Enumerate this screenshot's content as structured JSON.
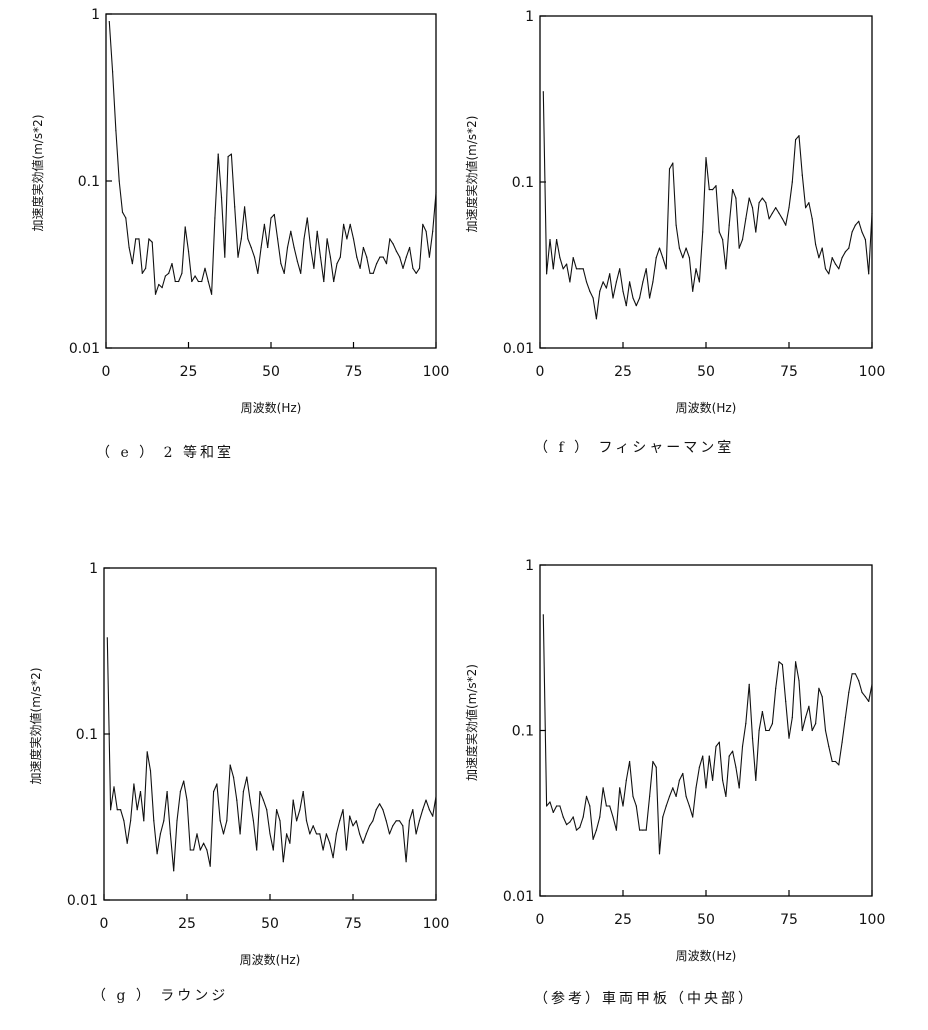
{
  "chart_data": [
    {
      "type": "line",
      "caption": "（ e ） 2 等和室",
      "xlabel": "周波数(Hz)",
      "ylabel": "加速度実効値(m/s*2)",
      "xlim": [
        0,
        100
      ],
      "ylim": [
        0.01,
        1
      ],
      "yscale": "log",
      "grid": false,
      "xticks": [
        "0",
        "25",
        "50",
        "75",
        "100"
      ],
      "yticks": [
        "0.01",
        "0.1",
        "1"
      ],
      "series": [
        {
          "x": [
            1,
            2,
            3,
            4,
            5,
            6,
            7,
            8,
            9,
            10,
            11,
            12,
            13,
            14,
            15,
            16,
            17,
            18,
            19,
            20,
            21,
            22,
            23,
            24,
            25,
            26,
            27,
            28,
            29,
            30,
            31,
            32,
            33,
            34,
            35,
            36,
            37,
            38,
            39,
            40,
            41,
            42,
            43,
            44,
            45,
            46,
            47,
            48,
            49,
            50,
            51,
            52,
            53,
            54,
            55,
            56,
            57,
            58,
            59,
            60,
            61,
            62,
            63,
            64,
            65,
            66,
            67,
            68,
            69,
            70,
            71,
            72,
            73,
            74,
            75,
            76,
            77,
            78,
            79,
            80,
            81,
            82,
            83,
            84,
            85,
            86,
            87,
            88,
            89,
            90,
            91,
            92,
            93,
            94,
            95,
            96,
            97,
            98,
            99,
            100
          ],
          "values": [
            0.9,
            0.45,
            0.2,
            0.1,
            0.065,
            0.06,
            0.04,
            0.032,
            0.045,
            0.045,
            0.028,
            0.03,
            0.045,
            0.043,
            0.021,
            0.024,
            0.023,
            0.027,
            0.028,
            0.032,
            0.025,
            0.025,
            0.028,
            0.053,
            0.038,
            0.025,
            0.027,
            0.025,
            0.025,
            0.03,
            0.025,
            0.021,
            0.06,
            0.145,
            0.08,
            0.035,
            0.14,
            0.145,
            0.07,
            0.035,
            0.045,
            0.07,
            0.045,
            0.04,
            0.035,
            0.028,
            0.04,
            0.055,
            0.04,
            0.06,
            0.063,
            0.045,
            0.032,
            0.028,
            0.04,
            0.05,
            0.04,
            0.033,
            0.028,
            0.045,
            0.06,
            0.04,
            0.03,
            0.05,
            0.035,
            0.025,
            0.045,
            0.035,
            0.025,
            0.032,
            0.035,
            0.055,
            0.045,
            0.055,
            0.045,
            0.035,
            0.03,
            0.04,
            0.035,
            0.028,
            0.028,
            0.032,
            0.035,
            0.035,
            0.032,
            0.045,
            0.042,
            0.038,
            0.035,
            0.03,
            0.035,
            0.04,
            0.03,
            0.028,
            0.03,
            0.055,
            0.05,
            0.035,
            0.05,
            0.085
          ]
        }
      ]
    },
    {
      "type": "line",
      "caption": "（ f ） フィシャーマン室",
      "xlabel": "周波数(Hz)",
      "ylabel": "加速度実効値(m/s*2)",
      "xlim": [
        0,
        100
      ],
      "ylim": [
        0.01,
        1
      ],
      "yscale": "log",
      "grid": false,
      "xticks": [
        "0",
        "25",
        "50",
        "75",
        "100"
      ],
      "yticks": [
        "0.01",
        "0.1",
        "1"
      ],
      "series": [
        {
          "x": [
            1,
            2,
            3,
            4,
            5,
            6,
            7,
            8,
            9,
            10,
            11,
            12,
            13,
            14,
            15,
            16,
            17,
            18,
            19,
            20,
            21,
            22,
            23,
            24,
            25,
            26,
            27,
            28,
            29,
            30,
            31,
            32,
            33,
            34,
            35,
            36,
            37,
            38,
            39,
            40,
            41,
            42,
            43,
            44,
            45,
            46,
            47,
            48,
            49,
            50,
            51,
            52,
            53,
            54,
            55,
            56,
            57,
            58,
            59,
            60,
            61,
            62,
            63,
            64,
            65,
            66,
            67,
            68,
            69,
            70,
            71,
            72,
            73,
            74,
            75,
            76,
            77,
            78,
            79,
            80,
            81,
            82,
            83,
            84,
            85,
            86,
            87,
            88,
            89,
            90,
            91,
            92,
            93,
            94,
            95,
            96,
            97,
            98,
            99,
            100
          ],
          "values": [
            0.35,
            0.028,
            0.045,
            0.03,
            0.045,
            0.035,
            0.03,
            0.032,
            0.025,
            0.035,
            0.03,
            0.03,
            0.03,
            0.025,
            0.022,
            0.02,
            0.015,
            0.022,
            0.025,
            0.023,
            0.028,
            0.02,
            0.025,
            0.03,
            0.022,
            0.018,
            0.025,
            0.02,
            0.018,
            0.02,
            0.025,
            0.03,
            0.02,
            0.025,
            0.035,
            0.04,
            0.035,
            0.03,
            0.12,
            0.13,
            0.055,
            0.04,
            0.035,
            0.04,
            0.035,
            0.022,
            0.03,
            0.025,
            0.05,
            0.14,
            0.09,
            0.09,
            0.095,
            0.05,
            0.045,
            0.03,
            0.055,
            0.09,
            0.08,
            0.04,
            0.045,
            0.06,
            0.08,
            0.07,
            0.05,
            0.075,
            0.08,
            0.075,
            0.06,
            0.065,
            0.07,
            0.065,
            0.06,
            0.055,
            0.07,
            0.1,
            0.18,
            0.19,
            0.11,
            0.07,
            0.075,
            0.06,
            0.042,
            0.035,
            0.04,
            0.03,
            0.028,
            0.035,
            0.032,
            0.03,
            0.035,
            0.038,
            0.04,
            0.05,
            0.055,
            0.058,
            0.05,
            0.045,
            0.028,
            0.065
          ]
        }
      ]
    },
    {
      "type": "line",
      "caption": "（ g ） ラウンジ",
      "xlabel": "周波数(Hz)",
      "ylabel": "加速度実効値(m/s*2)",
      "xlim": [
        0,
        100
      ],
      "ylim": [
        0.01,
        1
      ],
      "yscale": "log",
      "grid": false,
      "xticks": [
        "0",
        "25",
        "50",
        "75",
        "100"
      ],
      "yticks": [
        "0.01",
        "0.1",
        "1"
      ],
      "series": [
        {
          "x": [
            1,
            2,
            3,
            4,
            5,
            6,
            7,
            8,
            9,
            10,
            11,
            12,
            13,
            14,
            15,
            16,
            17,
            18,
            19,
            20,
            21,
            22,
            23,
            24,
            25,
            26,
            27,
            28,
            29,
            30,
            31,
            32,
            33,
            34,
            35,
            36,
            37,
            38,
            39,
            40,
            41,
            42,
            43,
            44,
            45,
            46,
            47,
            48,
            49,
            50,
            51,
            52,
            53,
            54,
            55,
            56,
            57,
            58,
            59,
            60,
            61,
            62,
            63,
            64,
            65,
            66,
            67,
            68,
            69,
            70,
            71,
            72,
            73,
            74,
            75,
            76,
            77,
            78,
            79,
            80,
            81,
            82,
            83,
            84,
            85,
            86,
            87,
            88,
            89,
            90,
            91,
            92,
            93,
            94,
            95,
            96,
            97,
            98,
            99,
            100
          ],
          "values": [
            0.38,
            0.035,
            0.048,
            0.035,
            0.035,
            0.03,
            0.022,
            0.03,
            0.05,
            0.035,
            0.045,
            0.03,
            0.078,
            0.06,
            0.03,
            0.019,
            0.025,
            0.03,
            0.045,
            0.025,
            0.015,
            0.03,
            0.045,
            0.052,
            0.04,
            0.02,
            0.02,
            0.025,
            0.02,
            0.022,
            0.02,
            0.016,
            0.045,
            0.05,
            0.03,
            0.025,
            0.03,
            0.065,
            0.055,
            0.04,
            0.025,
            0.045,
            0.055,
            0.04,
            0.03,
            0.02,
            0.045,
            0.04,
            0.035,
            0.025,
            0.02,
            0.035,
            0.03,
            0.017,
            0.025,
            0.022,
            0.04,
            0.03,
            0.035,
            0.045,
            0.03,
            0.025,
            0.028,
            0.025,
            0.025,
            0.02,
            0.025,
            0.022,
            0.018,
            0.025,
            0.03,
            0.035,
            0.02,
            0.032,
            0.028,
            0.03,
            0.025,
            0.022,
            0.025,
            0.028,
            0.03,
            0.035,
            0.038,
            0.035,
            0.03,
            0.025,
            0.028,
            0.03,
            0.03,
            0.028,
            0.017,
            0.03,
            0.035,
            0.025,
            0.03,
            0.035,
            0.04,
            0.035,
            0.032,
            0.042
          ]
        }
      ]
    },
    {
      "type": "line",
      "caption": "（参考）車両甲板（中央部）",
      "xlabel": "周波数(Hz)",
      "ylabel": "加速度実効値(m/s*2)",
      "xlim": [
        0,
        100
      ],
      "ylim": [
        0.01,
        1
      ],
      "yscale": "log",
      "grid": false,
      "xticks": [
        "0",
        "25",
        "50",
        "75",
        "100"
      ],
      "yticks": [
        "0.01",
        "0.1",
        "1"
      ],
      "series": [
        {
          "x": [
            1,
            2,
            3,
            4,
            5,
            6,
            7,
            8,
            9,
            10,
            11,
            12,
            13,
            14,
            15,
            16,
            17,
            18,
            19,
            20,
            21,
            22,
            23,
            24,
            25,
            26,
            27,
            28,
            29,
            30,
            31,
            32,
            33,
            34,
            35,
            36,
            37,
            38,
            39,
            40,
            41,
            42,
            43,
            44,
            45,
            46,
            47,
            48,
            49,
            50,
            51,
            52,
            53,
            54,
            55,
            56,
            57,
            58,
            59,
            60,
            61,
            62,
            63,
            64,
            65,
            66,
            67,
            68,
            69,
            70,
            71,
            72,
            73,
            74,
            75,
            76,
            77,
            78,
            79,
            80,
            81,
            82,
            83,
            84,
            85,
            86,
            87,
            88,
            89,
            90,
            91,
            92,
            93,
            94,
            95,
            96,
            97,
            98,
            99,
            100
          ],
          "values": [
            0.5,
            0.035,
            0.037,
            0.032,
            0.035,
            0.035,
            0.03,
            0.027,
            0.028,
            0.03,
            0.025,
            0.026,
            0.03,
            0.04,
            0.035,
            0.022,
            0.025,
            0.03,
            0.045,
            0.035,
            0.035,
            0.03,
            0.025,
            0.045,
            0.035,
            0.05,
            0.065,
            0.04,
            0.035,
            0.025,
            0.025,
            0.025,
            0.04,
            0.065,
            0.06,
            0.018,
            0.03,
            0.035,
            0.04,
            0.045,
            0.04,
            0.05,
            0.055,
            0.04,
            0.035,
            0.03,
            0.045,
            0.06,
            0.07,
            0.045,
            0.07,
            0.05,
            0.08,
            0.085,
            0.05,
            0.04,
            0.07,
            0.075,
            0.06,
            0.045,
            0.08,
            0.11,
            0.19,
            0.09,
            0.05,
            0.1,
            0.13,
            0.1,
            0.1,
            0.11,
            0.18,
            0.26,
            0.25,
            0.15,
            0.09,
            0.12,
            0.26,
            0.2,
            0.1,
            0.12,
            0.14,
            0.1,
            0.11,
            0.18,
            0.16,
            0.1,
            0.08,
            0.065,
            0.065,
            0.062,
            0.085,
            0.12,
            0.17,
            0.22,
            0.22,
            0.2,
            0.17,
            0.16,
            0.15,
            0.19
          ]
        }
      ]
    }
  ]
}
